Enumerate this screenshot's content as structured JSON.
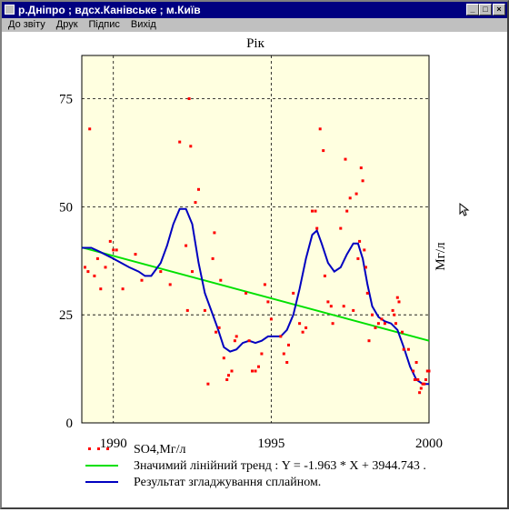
{
  "window": {
    "title": "р.Дніпро ; вдсх.Канівське ; м.Київ",
    "minimize_glyph": "_",
    "maximize_glyph": "□",
    "close_glyph": "×"
  },
  "menu": [
    {
      "label": "До звіту"
    },
    {
      "label": "Друк"
    },
    {
      "label": "Підпис"
    },
    {
      "label": "Вихід"
    }
  ],
  "chart_data": {
    "type": "scatter",
    "title": "Рік",
    "xlabel": "",
    "ylabel": "Мг/л",
    "xlim": [
      1989,
      2000
    ],
    "ylim": [
      0,
      85
    ],
    "xticks": [
      1990,
      1995,
      2000
    ],
    "yticks": [
      0,
      25,
      50,
      75
    ],
    "grid": "dashed",
    "legend_position": "bottom",
    "series": [
      {
        "name": "SO4,Мг/л",
        "kind": "scatter",
        "color": "#ff0000",
        "points": [
          [
            1989.1,
            36
          ],
          [
            1989.2,
            35
          ],
          [
            1989.25,
            68
          ],
          [
            1989.4,
            34
          ],
          [
            1989.5,
            38
          ],
          [
            1989.6,
            31
          ],
          [
            1989.75,
            36
          ],
          [
            1989.9,
            42
          ],
          [
            1990.0,
            40
          ],
          [
            1990.1,
            40
          ],
          [
            1990.3,
            31
          ],
          [
            1990.7,
            39
          ],
          [
            1990.9,
            33
          ],
          [
            1991.5,
            35
          ],
          [
            1991.8,
            32
          ],
          [
            1992.1,
            65
          ],
          [
            1992.3,
            41
          ],
          [
            1992.35,
            26
          ],
          [
            1992.4,
            75
          ],
          [
            1992.45,
            64
          ],
          [
            1992.5,
            35
          ],
          [
            1992.6,
            51
          ],
          [
            1992.7,
            54
          ],
          [
            1992.9,
            26
          ],
          [
            1993.0,
            9
          ],
          [
            1993.15,
            38
          ],
          [
            1993.2,
            44
          ],
          [
            1993.25,
            21
          ],
          [
            1993.35,
            22
          ],
          [
            1993.4,
            33
          ],
          [
            1993.5,
            15
          ],
          [
            1993.6,
            10
          ],
          [
            1993.65,
            11
          ],
          [
            1993.75,
            12
          ],
          [
            1993.85,
            19
          ],
          [
            1993.9,
            20
          ],
          [
            1994.2,
            30
          ],
          [
            1994.3,
            19
          ],
          [
            1994.4,
            12
          ],
          [
            1994.5,
            12
          ],
          [
            1994.6,
            13
          ],
          [
            1994.7,
            16
          ],
          [
            1994.8,
            32
          ],
          [
            1994.9,
            28
          ],
          [
            1995.0,
            24
          ],
          [
            1995.3,
            20
          ],
          [
            1995.4,
            16
          ],
          [
            1995.5,
            14
          ],
          [
            1995.55,
            18
          ],
          [
            1995.7,
            30
          ],
          [
            1995.9,
            23
          ],
          [
            1996.0,
            21
          ],
          [
            1996.1,
            22
          ],
          [
            1996.3,
            49
          ],
          [
            1996.4,
            49
          ],
          [
            1996.45,
            45
          ],
          [
            1996.55,
            68
          ],
          [
            1996.65,
            63
          ],
          [
            1996.7,
            34
          ],
          [
            1996.8,
            28
          ],
          [
            1996.9,
            27
          ],
          [
            1996.95,
            23
          ],
          [
            1997.2,
            45
          ],
          [
            1997.3,
            27
          ],
          [
            1997.35,
            61
          ],
          [
            1997.4,
            49
          ],
          [
            1997.5,
            52
          ],
          [
            1997.6,
            26
          ],
          [
            1997.7,
            53
          ],
          [
            1997.75,
            38
          ],
          [
            1997.8,
            42
          ],
          [
            1997.85,
            59
          ],
          [
            1997.9,
            56
          ],
          [
            1997.95,
            40
          ],
          [
            1998.0,
            36
          ],
          [
            1998.05,
            30
          ],
          [
            1998.1,
            19
          ],
          [
            1998.2,
            25
          ],
          [
            1998.3,
            22
          ],
          [
            1998.4,
            23
          ],
          [
            1998.5,
            24
          ],
          [
            1998.6,
            23
          ],
          [
            1998.85,
            26
          ],
          [
            1998.9,
            25
          ],
          [
            1998.95,
            23
          ],
          [
            1999.0,
            29
          ],
          [
            1999.05,
            28
          ],
          [
            1999.15,
            21
          ],
          [
            1999.2,
            17
          ],
          [
            1999.35,
            17
          ],
          [
            1999.5,
            12
          ],
          [
            1999.55,
            10
          ],
          [
            1999.6,
            14
          ],
          [
            1999.65,
            10
          ],
          [
            1999.7,
            7
          ],
          [
            1999.75,
            8
          ],
          [
            1999.8,
            9
          ],
          [
            1999.85,
            9
          ],
          [
            1999.9,
            10
          ],
          [
            1999.95,
            12
          ],
          [
            2000.0,
            12
          ]
        ]
      },
      {
        "name": "Значимий лінійний тренд : Y =  -1.963 * X + 3944.743 .",
        "kind": "line",
        "color": "#00e000",
        "points": [
          [
            1989.0,
            40.6
          ],
          [
            2000.0,
            19.0
          ]
        ]
      },
      {
        "name": "Результат згладжування сплайном.",
        "kind": "line",
        "color": "#0000c0",
        "points": [
          [
            1989.0,
            40.5
          ],
          [
            1989.3,
            40.5
          ],
          [
            1989.6,
            39.5
          ],
          [
            1990.0,
            38
          ],
          [
            1990.5,
            36
          ],
          [
            1990.8,
            35
          ],
          [
            1991.0,
            34
          ],
          [
            1991.2,
            34
          ],
          [
            1991.5,
            37
          ],
          [
            1991.7,
            41
          ],
          [
            1991.9,
            46
          ],
          [
            1992.1,
            49.5
          ],
          [
            1992.3,
            49.5
          ],
          [
            1992.5,
            46
          ],
          [
            1992.7,
            37
          ],
          [
            1992.9,
            30
          ],
          [
            1993.1,
            26
          ],
          [
            1993.3,
            22
          ],
          [
            1993.5,
            17.5
          ],
          [
            1993.7,
            16.5
          ],
          [
            1993.9,
            17
          ],
          [
            1994.1,
            18.5
          ],
          [
            1994.3,
            19
          ],
          [
            1994.5,
            18.5
          ],
          [
            1994.7,
            19
          ],
          [
            1994.9,
            20
          ],
          [
            1995.1,
            20
          ],
          [
            1995.3,
            20
          ],
          [
            1995.5,
            21.5
          ],
          [
            1995.7,
            25
          ],
          [
            1995.9,
            31
          ],
          [
            1996.1,
            38
          ],
          [
            1996.3,
            43.5
          ],
          [
            1996.45,
            44.5
          ],
          [
            1996.6,
            41.5
          ],
          [
            1996.8,
            37
          ],
          [
            1997.0,
            35
          ],
          [
            1997.2,
            36
          ],
          [
            1997.4,
            39
          ],
          [
            1997.6,
            41.5
          ],
          [
            1997.75,
            41.5
          ],
          [
            1997.9,
            38
          ],
          [
            1998.05,
            32
          ],
          [
            1998.2,
            27
          ],
          [
            1998.4,
            24.5
          ],
          [
            1998.6,
            23.5
          ],
          [
            1998.8,
            23
          ],
          [
            1999.0,
            21.5
          ],
          [
            1999.2,
            17.5
          ],
          [
            1999.4,
            13
          ],
          [
            1999.6,
            10
          ],
          [
            1999.8,
            9
          ],
          [
            2000.0,
            9
          ]
        ]
      }
    ]
  }
}
